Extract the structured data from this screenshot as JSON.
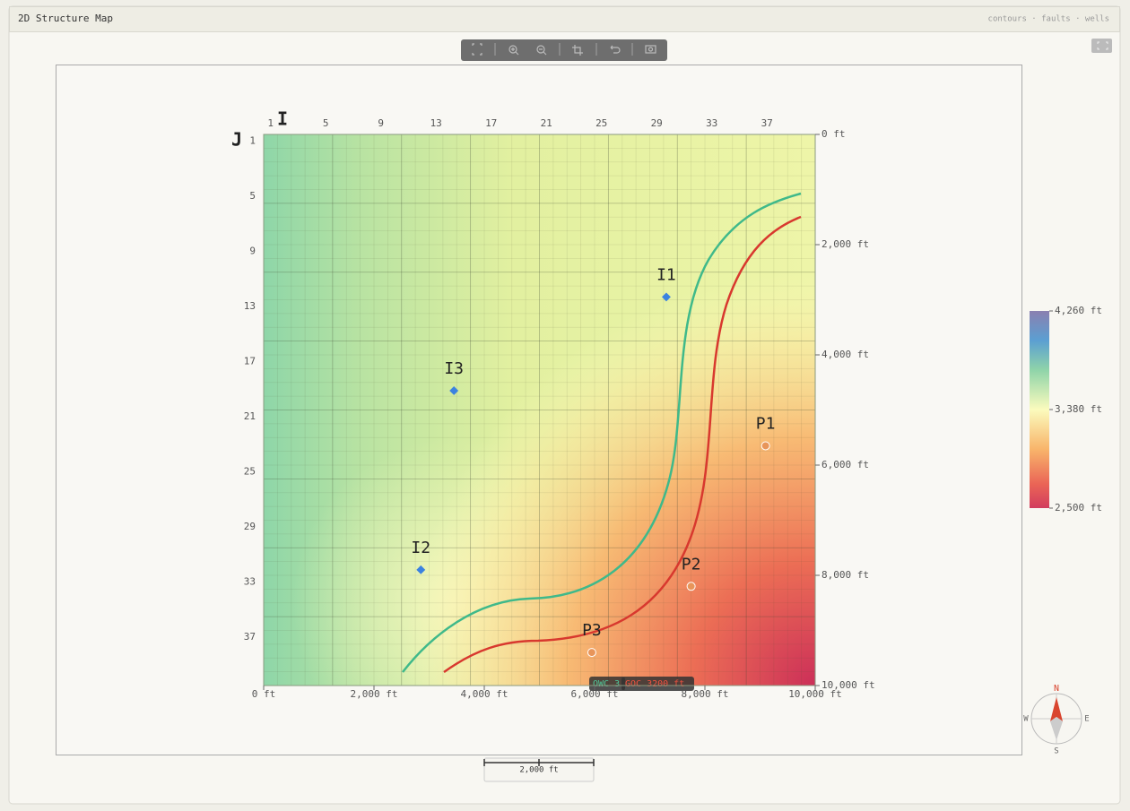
{
  "header": {
    "title": "2D Structure Map",
    "layers": "contours · faults · wells"
  },
  "map": {
    "i_label": "I",
    "j_label": "J",
    "i_ticks": [
      1,
      5,
      9,
      13,
      17,
      21,
      25,
      29,
      33,
      37
    ],
    "j_ticks": [
      1,
      5,
      9,
      13,
      17,
      21,
      25,
      29,
      33,
      37
    ],
    "xlim": [
      0,
      10000
    ],
    "ylim": [
      0,
      10000
    ],
    "xticks": [
      {
        "value": 0,
        "label": "0 ft"
      },
      {
        "value": 2000,
        "label": "2,000 ft"
      },
      {
        "value": 4000,
        "label": "4,000 ft"
      },
      {
        "value": 6000,
        "label": "6,000 ft"
      },
      {
        "value": 8000,
        "label": "8,000 ft"
      },
      {
        "value": 10000,
        "label": "10,000 ft"
      }
    ],
    "yticks": [
      {
        "value": 0,
        "label": "0 ft"
      },
      {
        "value": 2000,
        "label": "2,000 ft"
      },
      {
        "value": 4000,
        "label": "4,000 ft"
      },
      {
        "value": 6000,
        "label": "6,000 ft"
      },
      {
        "value": 8000,
        "label": "8,000 ft"
      },
      {
        "value": 10000,
        "label": "10,000 ft"
      }
    ],
    "wells": [
      {
        "name": "I1",
        "type": "injector",
        "x": 7300,
        "y": 2950
      },
      {
        "name": "I3",
        "type": "injector",
        "x": 3450,
        "y": 4650
      },
      {
        "name": "I2",
        "type": "injector",
        "x": 2850,
        "y": 7900
      },
      {
        "name": "P1",
        "type": "producer",
        "x": 9100,
        "y": 5650
      },
      {
        "name": "P2",
        "type": "producer",
        "x": 7750,
        "y": 8200
      },
      {
        "name": "P3",
        "type": "producer",
        "x": 5950,
        "y": 9400
      }
    ],
    "contour_labels": [
      "OWC 3",
      "GOC 3200 ft"
    ]
  },
  "colorbar": {
    "lim": [
      2500,
      4260
    ],
    "ticks": [
      {
        "value": 4260,
        "label": "4,260 ft"
      },
      {
        "value": 3380,
        "label": "3,380 ft"
      },
      {
        "value": 2500,
        "label": "2,500 ft"
      }
    ]
  },
  "scale_bar": {
    "label": "2,000 ft"
  },
  "compass": {
    "n": "N",
    "e": "E",
    "s": "S",
    "w": "W"
  }
}
